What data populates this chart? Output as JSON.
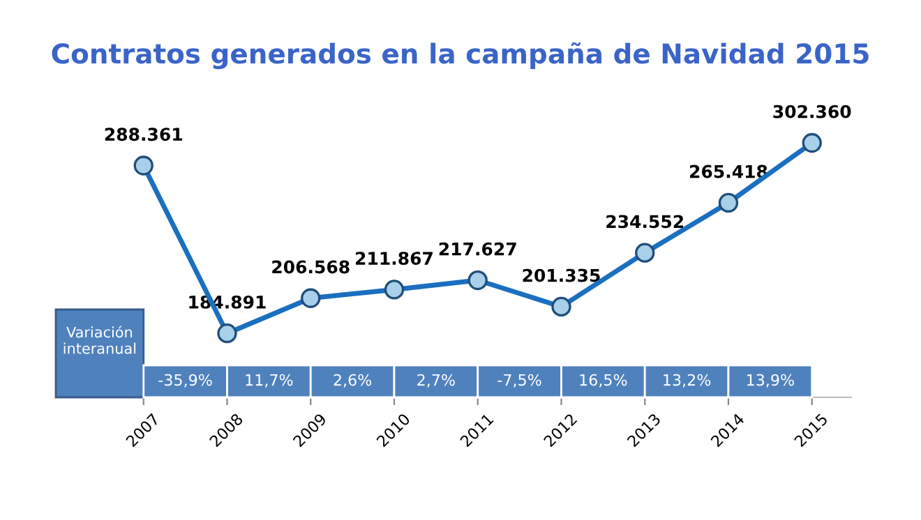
{
  "chart_data": {
    "type": "line",
    "title": "Contratos generados en la campaña de Navidad 2015",
    "categories": [
      "2007",
      "2008",
      "2009",
      "2010",
      "2011",
      "2012",
      "2013",
      "2014",
      "2015"
    ],
    "series": [
      {
        "color": "#1a6fc0",
        "values": [
          288361,
          184891,
          206568,
          211867,
          217627,
          201335,
          234552,
          265418,
          302360
        ],
        "value_labels": [
          "288.361",
          "184.891",
          "206.568",
          "211.867",
          "217.627",
          "201.335",
          "234.552",
          "265.418",
          "302.360"
        ]
      }
    ],
    "marker": "circle",
    "line_style": "solid",
    "grid": false,
    "legend": false,
    "tick_labels": "x",
    "annotations": [
      "Variación\ninteranual",
      "-35,9%",
      "11,7%",
      "2,6%",
      "2,7%",
      "-7,5%",
      "16,5%",
      "13,2%",
      "13,9%"
    ]
  }
}
